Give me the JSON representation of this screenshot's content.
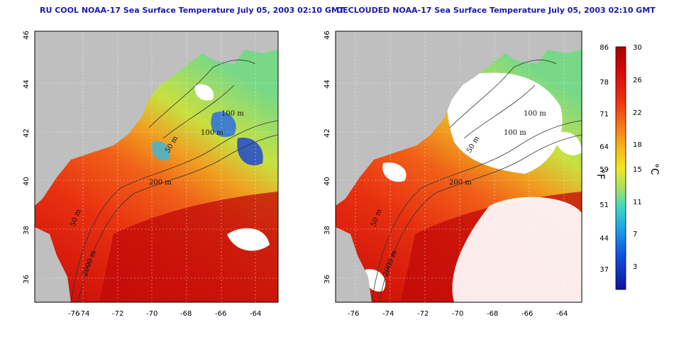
{
  "titles": {
    "left": "RU COOL NOAA-17 Sea Surface Temperature July 05, 2003 02:10 GMT",
    "right": "DECLOUDED NOAA-17 Sea Surface Temperature July 05, 2003 02:10 GMT"
  },
  "axes": {
    "x_ticks": [
      "-76",
      "-74",
      "-72",
      "-70",
      "-68",
      "-66",
      "-64"
    ],
    "y_ticks": [
      "46",
      "44",
      "42",
      "40",
      "38",
      "36"
    ]
  },
  "contour_labels": {
    "left": [
      "100 m",
      "100 m",
      "50 m",
      "200 m",
      "50 m",
      "2000 m"
    ],
    "right": [
      "100 m",
      "100 m",
      "50 m",
      "200 m",
      "50 m",
      "2000 m"
    ]
  },
  "colorbar": {
    "fahrenheit_ticks": [
      "86",
      "78",
      "71",
      "64",
      "59",
      "51",
      "44",
      "37"
    ],
    "celsius_ticks": [
      "30",
      "26",
      "22",
      "18",
      "15",
      "11",
      "7",
      "3"
    ],
    "fahrenheit_unit": "°F",
    "celsius_unit": "°C",
    "colors": [
      "#b00000",
      "#e01010",
      "#f04010",
      "#f88020",
      "#f8b818",
      "#e8e820",
      "#a8e060",
      "#50d8b8",
      "#20a8e8",
      "#1050e0",
      "#1010b0"
    ]
  },
  "colors": {
    "land": "#bfbfbf",
    "cloud": "#ffffff",
    "title": "#1a1aa8"
  }
}
